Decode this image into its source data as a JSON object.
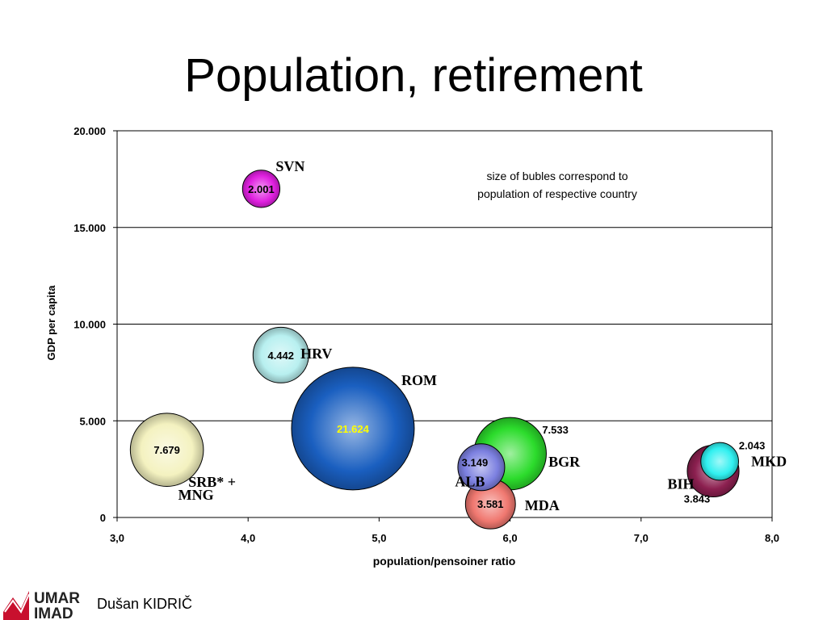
{
  "slide": {
    "title": "Population, retirement",
    "author": "Dušan KIDRIČ",
    "logo_text": [
      "UMAR",
      "IMAD"
    ]
  },
  "chart_data": {
    "type": "bubble",
    "xlabel": "population/pensoiner ratio",
    "ylabel": "GDP per capita",
    "xlim": [
      3.0,
      8.0
    ],
    "ylim": [
      0,
      20000
    ],
    "x_ticks": [
      "3,0",
      "4,0",
      "5,0",
      "6,0",
      "7,0",
      "8,0"
    ],
    "y_ticks": [
      "0",
      "5.000",
      "10.000",
      "15.000",
      "20.000"
    ],
    "grid": true,
    "annotation": [
      "size of bubles correspond to",
      "population of respective country"
    ],
    "points": [
      {
        "country": "SVN",
        "x": 4.1,
        "y": 17000,
        "size": "2.001",
        "color": "#e020e0"
      },
      {
        "country": "HRV",
        "x": 4.25,
        "y": 8400,
        "size": "4.442",
        "color": "#b8f0f0"
      },
      {
        "country": "ROM",
        "x": 4.8,
        "y": 4600,
        "size": "21.624",
        "color": "#1a5fc0"
      },
      {
        "country": "SRB* + MNG",
        "x": 3.38,
        "y": 3500,
        "size": "7.679",
        "color": "#f4f2c0"
      },
      {
        "country": "ALB",
        "x": 5.78,
        "y": 2600,
        "size": "3.149",
        "color": "#7c80e0"
      },
      {
        "country": "MDA",
        "x": 5.85,
        "y": 700,
        "size": "3.581",
        "color": "#f07870"
      },
      {
        "country": "BGR",
        "x": 6.0,
        "y": 3300,
        "size": "7.533",
        "color": "#2cdc2c"
      },
      {
        "country": "BIH",
        "x": 7.55,
        "y": 2400,
        "size": "3.843",
        "color": "#8c2050"
      },
      {
        "country": "MKD",
        "x": 7.6,
        "y": 2900,
        "size": "2.043",
        "color": "#30f0f0"
      }
    ]
  }
}
